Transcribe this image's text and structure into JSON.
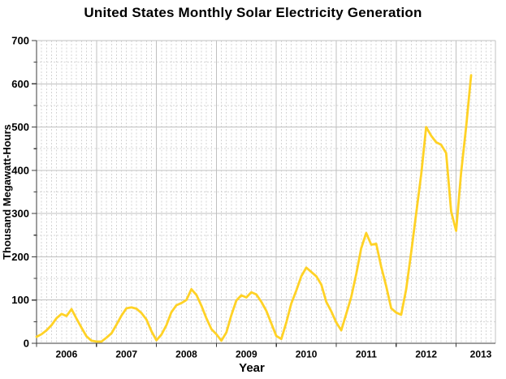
{
  "page": {
    "title": "United States Monthly Solar Electricity Generation"
  },
  "chart_data": {
    "type": "line",
    "title": "United States Monthly Solar Electricity Generation",
    "xlabel": "Year",
    "ylabel": "Thousand Megawatt-Hours",
    "x_tick_labels": [
      "2006",
      "2007",
      "2008",
      "2009",
      "2010",
      "2011",
      "2012",
      "2013"
    ],
    "y_tick_labels": [
      "0",
      "100",
      "200",
      "300",
      "400",
      "500",
      "600",
      "700"
    ],
    "ylim": [
      0,
      700
    ],
    "y_major_step": 100,
    "y_minor_step": 50,
    "x_major_grid": "year boundaries, solid",
    "x_minor_grid": "months, dashed",
    "grid": {
      "major": "solid",
      "minor": "dashed"
    },
    "legend": "none",
    "line_color": "#FFD226",
    "background_color": "#FFFFFF",
    "series": [
      {
        "name": "U.S. monthly solar electricity generation",
        "unit": "thousand megawatt-hours",
        "x_start": "2006-01",
        "x_end": "2013-04",
        "values_by_year": {
          "2006": [
            15,
            21,
            30,
            42,
            58,
            68,
            63,
            79,
            57,
            36,
            16,
            6
          ],
          "2007": [
            4,
            4,
            13,
            23,
            43,
            64,
            81,
            83,
            80,
            70,
            55,
            28
          ],
          "2008": [
            7,
            20,
            42,
            72,
            88,
            93,
            100,
            125,
            112,
            87,
            58,
            33
          ],
          "2009": [
            21,
            6,
            25,
            65,
            99,
            111,
            106,
            118,
            113,
            96,
            75,
            46
          ],
          "2010": [
            17,
            10,
            48,
            92,
            122,
            155,
            175,
            165,
            155,
            136,
            96,
            74
          ],
          "2011": [
            48,
            30,
            68,
            107,
            160,
            220,
            255,
            228,
            230,
            177,
            132,
            81
          ],
          "2012": [
            71,
            66,
            125,
            210,
            300,
            390,
            500,
            480,
            465,
            459,
            440,
            305
          ],
          "2013": [
            260,
            395,
            500,
            620
          ]
        }
      }
    ]
  }
}
